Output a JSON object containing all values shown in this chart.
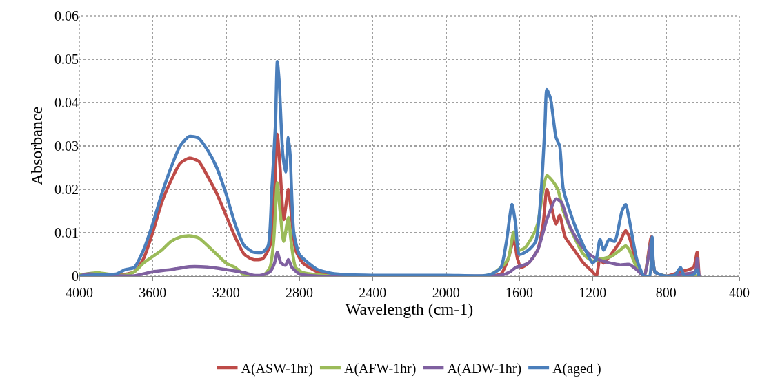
{
  "chart_data": {
    "type": "line",
    "xlabel": "Wavelength (cm-1)",
    "ylabel": "Absorbance",
    "xlim": [
      4000,
      400
    ],
    "xticks": [
      4000,
      3600,
      3200,
      2800,
      2400,
      2000,
      1600,
      1200,
      800,
      400
    ],
    "ylim": [
      0,
      0.06
    ],
    "yticks": [
      0,
      0.01,
      0.02,
      0.03,
      0.04,
      0.05,
      0.06
    ],
    "grid": true,
    "legend": "bottom",
    "marker": "none",
    "line_style": "solid",
    "series": [
      {
        "name": "A(ASW-1hr)",
        "color": "#be4b48",
        "x": [
          4000,
          3900,
          3800,
          3700,
          3650,
          3600,
          3550,
          3500,
          3450,
          3400,
          3350,
          3300,
          3250,
          3200,
          3150,
          3100,
          3050,
          3000,
          2960,
          2935,
          2920,
          2905,
          2885,
          2860,
          2850,
          2820,
          2780,
          2700,
          2600,
          2400,
          2000,
          1800,
          1700,
          1660,
          1630,
          1610,
          1590,
          1550,
          1500,
          1470,
          1450,
          1430,
          1400,
          1380,
          1350,
          1300,
          1250,
          1200,
          1180,
          1160,
          1140,
          1100,
          1050,
          1020,
          1000,
          960,
          920,
          880,
          860,
          800,
          720,
          650,
          630,
          620
        ],
        "values": [
          0,
          0.0003,
          0.0002,
          0.001,
          0.004,
          0.01,
          0.017,
          0.022,
          0.026,
          0.0272,
          0.0265,
          0.023,
          0.019,
          0.014,
          0.009,
          0.005,
          0.0038,
          0.004,
          0.007,
          0.02,
          0.0327,
          0.025,
          0.013,
          0.02,
          0.017,
          0.006,
          0.003,
          0.001,
          0.0003,
          0.0001,
          0.0001,
          0,
          0.0005,
          0.004,
          0.0085,
          0.004,
          0.002,
          0.003,
          0.006,
          0.012,
          0.02,
          0.017,
          0.012,
          0.014,
          0.009,
          0.006,
          0.003,
          0.001,
          0,
          0.004,
          0.003,
          0.005,
          0.008,
          0.0105,
          0.009,
          0.003,
          0,
          0.009,
          0.001,
          0,
          0.001,
          0.002,
          0.0055,
          0
        ]
      },
      {
        "name": "A(AFW-1hr)",
        "color": "#9bbb59",
        "x": [
          4000,
          3900,
          3850,
          3750,
          3700,
          3650,
          3600,
          3550,
          3500,
          3450,
          3400,
          3350,
          3300,
          3250,
          3200,
          3150,
          3100,
          3000,
          2960,
          2940,
          2920,
          2905,
          2885,
          2860,
          2845,
          2820,
          2780,
          2700,
          2600,
          2400,
          2000,
          1800,
          1750,
          1700,
          1660,
          1630,
          1600,
          1570,
          1530,
          1500,
          1470,
          1450,
          1420,
          1390,
          1360,
          1300,
          1250,
          1200,
          1150,
          1100,
          1050,
          1020,
          1000,
          960,
          920,
          880,
          860,
          800,
          700,
          620
        ],
        "values": [
          0.0003,
          0.0008,
          0.0005,
          0.0002,
          0.001,
          0.003,
          0.0045,
          0.006,
          0.008,
          0.009,
          0.0093,
          0.0088,
          0.007,
          0.005,
          0.003,
          0.002,
          0.0003,
          0,
          0.002,
          0.008,
          0.0215,
          0.015,
          0.008,
          0.0135,
          0.008,
          0.002,
          0.0008,
          0.0003,
          0,
          0,
          0,
          0,
          0.0005,
          0.002,
          0.004,
          0.0102,
          0.006,
          0.0065,
          0.009,
          0.012,
          0.02,
          0.0232,
          0.022,
          0.02,
          0.015,
          0.009,
          0.005,
          0.0035,
          0.004,
          0.0045,
          0.006,
          0.007,
          0.006,
          0.002,
          0,
          0.008,
          0.001,
          0,
          0.0003,
          0
        ]
      },
      {
        "name": "A(ADW-1hr)",
        "color": "#7f60a0",
        "x": [
          4000,
          3950,
          3800,
          3700,
          3600,
          3500,
          3400,
          3300,
          3200,
          3100,
          3050,
          3000,
          2960,
          2935,
          2920,
          2900,
          2875,
          2860,
          2840,
          2800,
          2700,
          2400,
          2000,
          1700,
          1650,
          1620,
          1580,
          1550,
          1500,
          1450,
          1400,
          1370,
          1330,
          1280,
          1230,
          1200,
          1150,
          1100,
          1050,
          1000,
          960,
          920,
          880,
          860,
          800,
          700,
          640,
          630,
          620
        ],
        "values": [
          0,
          0.0005,
          0.0001,
          0.0001,
          0.001,
          0.0015,
          0.0022,
          0.0021,
          0.0015,
          0.0008,
          0.0002,
          0.0003,
          0.001,
          0.003,
          0.0055,
          0.003,
          0.0025,
          0.0038,
          0.002,
          0.0005,
          0,
          0,
          0,
          0.0002,
          0.001,
          0.002,
          0.0025,
          0.003,
          0.006,
          0.013,
          0.0178,
          0.017,
          0.012,
          0.008,
          0.0055,
          0.0045,
          0.0035,
          0.003,
          0.0026,
          0.0027,
          0.0015,
          0,
          0.008,
          0.001,
          0,
          0.0005,
          0.001,
          0.004,
          0
        ]
      },
      {
        "name": "A(aged )",
        "color": "#4a7ebb",
        "x": [
          4000,
          3900,
          3800,
          3750,
          3700,
          3650,
          3600,
          3550,
          3500,
          3450,
          3400,
          3350,
          3300,
          3250,
          3200,
          3150,
          3100,
          3050,
          3000,
          2970,
          2950,
          2930,
          2920,
          2910,
          2890,
          2875,
          2860,
          2850,
          2830,
          2800,
          2750,
          2700,
          2600,
          2400,
          2000,
          1800,
          1750,
          1700,
          1670,
          1640,
          1620,
          1600,
          1550,
          1510,
          1480,
          1460,
          1450,
          1430,
          1400,
          1380,
          1360,
          1300,
          1250,
          1200,
          1180,
          1160,
          1140,
          1110,
          1080,
          1040,
          1020,
          1000,
          960,
          920,
          890,
          875,
          860,
          800,
          750,
          720,
          700,
          650,
          630,
          620
        ],
        "values": [
          0,
          0.0003,
          0.0005,
          0.0015,
          0.002,
          0.006,
          0.012,
          0.019,
          0.025,
          0.03,
          0.0322,
          0.0318,
          0.029,
          0.025,
          0.019,
          0.012,
          0.007,
          0.0055,
          0.0055,
          0.007,
          0.02,
          0.035,
          0.0495,
          0.045,
          0.028,
          0.024,
          0.032,
          0.028,
          0.01,
          0.005,
          0.003,
          0.0015,
          0.0005,
          0.0002,
          0.0002,
          0.0001,
          0.0005,
          0.002,
          0.008,
          0.0165,
          0.012,
          0.005,
          0.006,
          0.008,
          0.02,
          0.035,
          0.043,
          0.041,
          0.032,
          0.03,
          0.02,
          0.012,
          0.007,
          0.003,
          0.004,
          0.0085,
          0.006,
          0.0085,
          0.008,
          0.015,
          0.0165,
          0.013,
          0.004,
          0,
          0,
          0.009,
          0.001,
          0,
          0.0003,
          0.002,
          0,
          0.0003,
          0.0015,
          0
        ]
      }
    ]
  }
}
